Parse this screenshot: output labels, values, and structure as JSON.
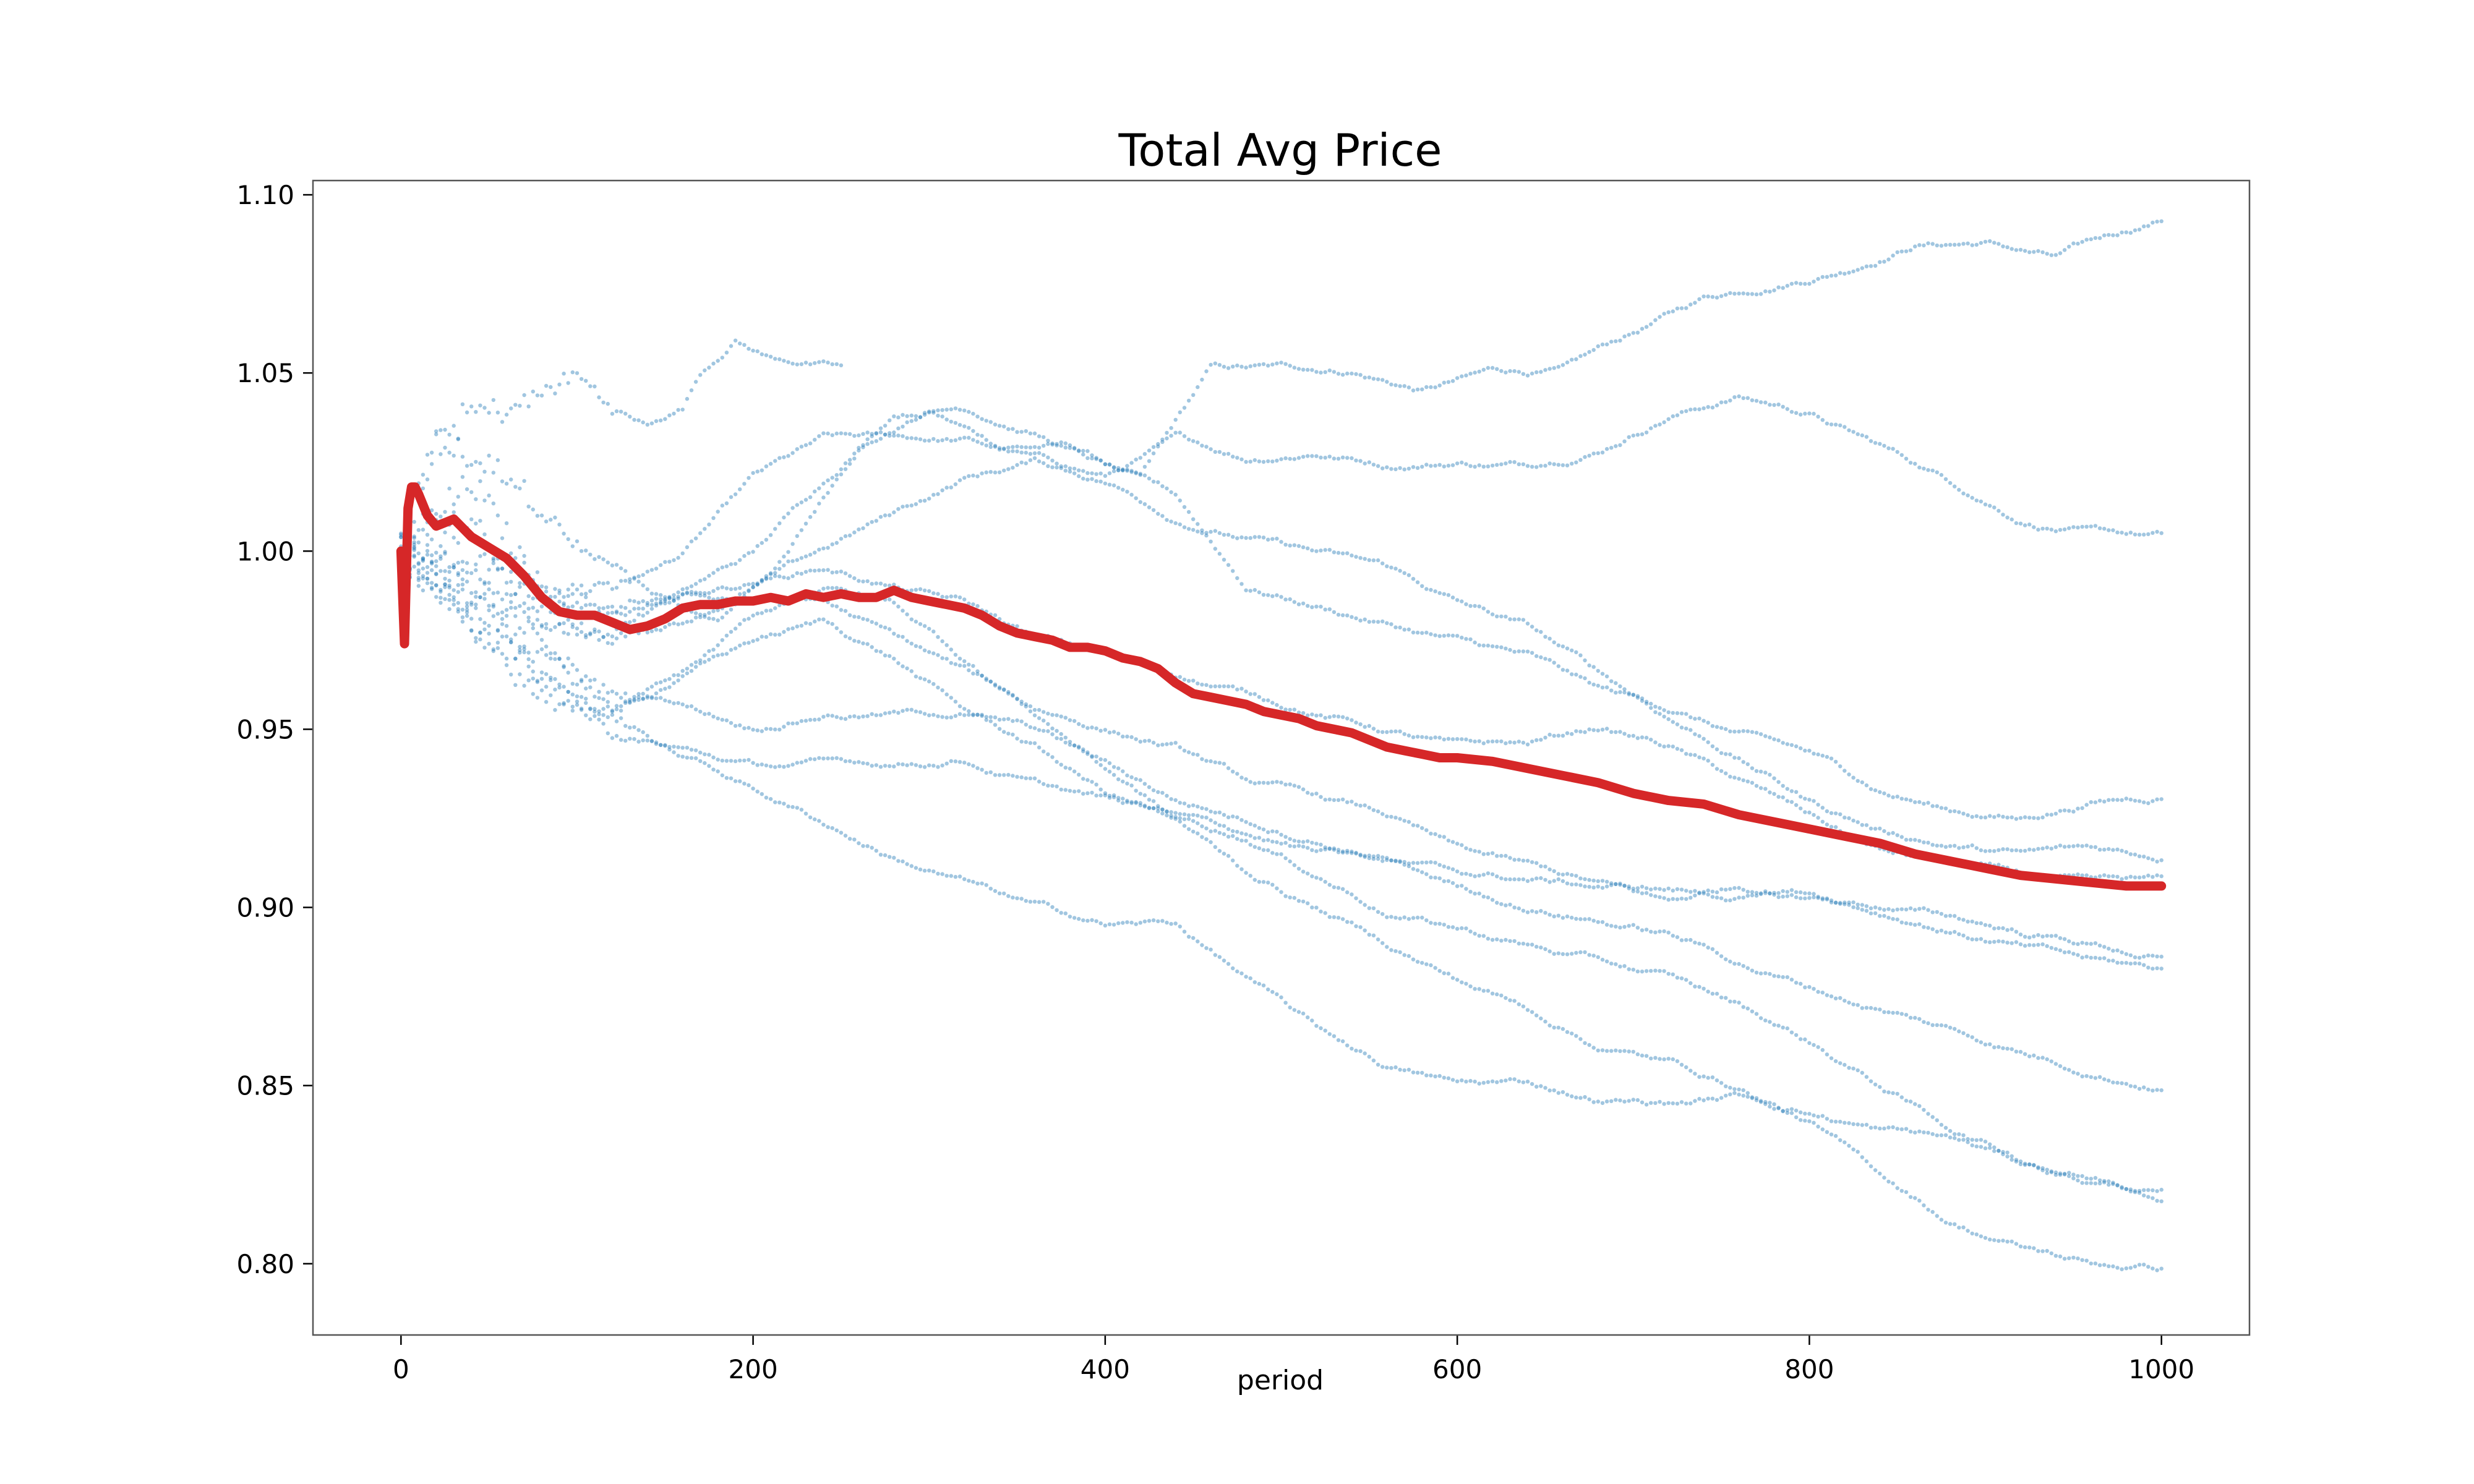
{
  "chart_data": {
    "type": "scatter",
    "title": "Total Avg Price",
    "xlabel": "period",
    "ylabel": "",
    "xlim": [
      -50,
      1050
    ],
    "ylim": [
      0.78,
      1.104
    ],
    "xticks": [
      0,
      200,
      400,
      600,
      800,
      1000
    ],
    "yticks": [
      0.8,
      0.85,
      0.9,
      0.95,
      1.0,
      1.05,
      1.1
    ],
    "xtick_labels": [
      "0",
      "200",
      "400",
      "600",
      "800",
      "1000"
    ],
    "ytick_labels": [
      "0.80",
      "0.85",
      "0.90",
      "0.95",
      "1.00",
      "1.05",
      "1.10"
    ],
    "grid": false,
    "legend": "none",
    "colors": {
      "runs": "#1f77b4",
      "average": "#d62728",
      "frame": "#555555"
    },
    "series": [
      {
        "kind": "scatter",
        "x": [
          0,
          20,
          60,
          100,
          140,
          180,
          220,
          260,
          300,
          340,
          380,
          420,
          460,
          500,
          540,
          580,
          620,
          660,
          700,
          740,
          780,
          820,
          860,
          900,
          940,
          1000
        ],
        "values": [
          1.0,
          1.03,
          1.02,
          1.0,
          0.99,
          0.98,
          1.0,
          1.03,
          1.04,
          1.03,
          1.03,
          1.02,
          1.05,
          1.05,
          1.05,
          1.045,
          1.05,
          1.05,
          1.06,
          1.07,
          1.075,
          1.08,
          1.088,
          1.088,
          1.083,
          1.093
        ]
      },
      {
        "kind": "scatter",
        "x": [
          0,
          40,
          80,
          120,
          160,
          200,
          240,
          280,
          320,
          360,
          400,
          440,
          480,
          520,
          560,
          600,
          640,
          680,
          720,
          760,
          800,
          840,
          880,
          920,
          960,
          1000
        ],
        "values": [
          1.0,
          1.01,
          0.99,
          0.99,
          1.0,
          1.02,
          1.03,
          1.03,
          1.03,
          1.025,
          1.02,
          1.03,
          1.025,
          1.028,
          1.025,
          1.026,
          1.025,
          1.03,
          1.04,
          1.045,
          1.04,
          1.03,
          1.02,
          1.01,
          1.006,
          1.004
        ]
      },
      {
        "kind": "scatter",
        "x": [
          0,
          20,
          40,
          60,
          80,
          100,
          120,
          140,
          160,
          170,
          190,
          210,
          230,
          250
        ],
        "values": [
          1.0,
          1.03,
          1.04,
          1.04,
          1.045,
          1.05,
          1.04,
          1.035,
          1.04,
          1.05,
          1.06,
          1.055,
          1.054,
          1.052
        ]
      },
      {
        "kind": "scatter",
        "x": [
          0,
          40,
          80,
          120,
          160,
          200,
          240,
          280,
          320,
          360,
          400,
          440,
          480,
          520,
          560,
          600,
          640,
          680,
          720,
          760,
          800,
          840,
          880,
          920,
          960,
          1000
        ],
        "values": [
          1.0,
          1.02,
          0.99,
          0.985,
          0.99,
          1.0,
          1.02,
          1.04,
          1.042,
          1.035,
          1.025,
          1.015,
          0.99,
          0.985,
          0.98,
          0.975,
          0.97,
          0.96,
          0.955,
          0.948,
          0.942,
          0.932,
          0.927,
          0.925,
          0.93,
          0.932
        ]
      },
      {
        "kind": "scatter",
        "x": [
          0,
          40,
          80,
          120,
          160,
          200,
          240,
          280,
          320,
          360,
          400,
          440,
          480,
          520,
          560,
          600,
          640,
          680,
          720,
          760,
          800,
          840,
          880,
          920,
          960,
          1000
        ],
        "values": [
          1.0,
          1.0,
          0.98,
          0.975,
          0.98,
          0.99,
          1.0,
          1.01,
          1.02,
          1.025,
          1.02,
          1.01,
          1.005,
          1.0,
          0.995,
          0.985,
          0.978,
          0.965,
          0.953,
          0.942,
          0.93,
          0.922,
          0.918,
          0.915,
          0.916,
          0.914
        ]
      },
      {
        "kind": "scatter",
        "x": [
          0,
          40,
          80,
          120,
          160,
          200,
          240,
          280,
          320,
          360,
          400,
          440,
          480,
          520,
          560,
          600,
          640,
          680,
          720,
          760,
          800,
          840,
          880,
          920,
          960,
          1000
        ],
        "values": [
          1.0,
          0.99,
          0.98,
          0.975,
          0.985,
          0.99,
          0.995,
          0.99,
          0.985,
          0.975,
          0.97,
          0.965,
          0.96,
          0.955,
          0.95,
          0.945,
          0.945,
          0.95,
          0.945,
          0.935,
          0.925,
          0.915,
          0.912,
          0.908,
          0.905,
          0.905
        ]
      },
      {
        "kind": "scatter",
        "x": [
          0,
          40,
          80,
          120,
          160,
          200,
          240,
          280,
          320,
          360,
          400,
          440,
          480,
          520,
          560,
          600,
          640,
          680,
          720,
          760,
          800,
          840,
          880,
          920,
          960,
          1000
        ],
        "values": [
          1.0,
          0.995,
          0.985,
          0.98,
          0.985,
          0.985,
          0.985,
          0.975,
          0.965,
          0.955,
          0.95,
          0.945,
          0.935,
          0.93,
          0.925,
          0.915,
          0.91,
          0.905,
          0.9,
          0.905,
          0.905,
          0.9,
          0.895,
          0.89,
          0.885,
          0.882
        ]
      },
      {
        "kind": "scatter",
        "x": [
          0,
          40,
          80,
          120,
          160,
          200,
          240,
          280,
          320,
          360,
          400,
          440,
          480,
          520,
          560,
          600,
          640,
          680,
          720,
          760,
          800,
          840,
          880,
          920,
          960,
          1000
        ],
        "values": [
          1.0,
          0.99,
          0.975,
          0.96,
          0.955,
          0.95,
          0.955,
          0.955,
          0.955,
          0.95,
          0.94,
          0.93,
          0.925,
          0.92,
          0.915,
          0.91,
          0.908,
          0.906,
          0.905,
          0.903,
          0.902,
          0.9,
          0.897,
          0.893,
          0.89,
          0.886
        ]
      },
      {
        "kind": "scatter",
        "x": [
          0,
          40,
          80,
          120,
          160,
          200,
          240,
          280,
          320,
          360,
          400,
          440,
          480,
          520,
          560,
          600,
          640,
          680,
          720,
          760,
          800,
          840,
          880,
          920,
          960,
          1000
        ],
        "values": [
          1.0,
          0.985,
          0.97,
          0.955,
          0.965,
          0.975,
          0.98,
          0.97,
          0.955,
          0.945,
          0.932,
          0.925,
          0.92,
          0.915,
          0.912,
          0.905,
          0.9,
          0.897,
          0.893,
          0.885,
          0.878,
          0.872,
          0.866,
          0.86,
          0.855,
          0.851
        ]
      },
      {
        "kind": "scatter",
        "x": [
          0,
          40,
          80,
          120,
          160,
          200,
          240,
          280,
          320,
          360,
          400,
          440,
          480,
          520,
          560,
          600,
          640,
          680,
          720,
          760,
          800,
          840,
          880,
          920,
          960,
          1000
        ],
        "values": [
          1.0,
          0.985,
          0.965,
          0.95,
          0.945,
          0.94,
          0.94,
          0.94,
          0.942,
          0.935,
          0.93,
          0.925,
          0.92,
          0.91,
          0.9,
          0.895,
          0.89,
          0.885,
          0.88,
          0.872,
          0.862,
          0.85,
          0.838,
          0.83,
          0.825,
          0.821
        ]
      },
      {
        "kind": "scatter",
        "x": [
          0,
          40,
          80,
          120,
          160,
          200,
          240,
          280,
          320,
          360,
          400,
          440,
          480,
          520,
          560,
          600,
          640,
          680,
          720,
          760,
          800,
          840,
          880,
          920,
          960,
          1000
        ],
        "values": [
          1.0,
          0.98,
          0.965,
          0.955,
          0.945,
          0.935,
          0.925,
          0.915,
          0.908,
          0.9,
          0.895,
          0.895,
          0.88,
          0.865,
          0.855,
          0.85,
          0.85,
          0.846,
          0.845,
          0.847,
          0.843,
          0.838,
          0.835,
          0.828,
          0.823,
          0.82
        ]
      },
      {
        "kind": "scatter",
        "x": [
          0,
          40,
          80,
          120,
          160,
          200,
          240,
          280,
          320,
          360,
          400,
          440,
          480,
          520,
          560,
          600,
          640,
          680,
          720,
          760,
          800,
          840,
          880,
          920,
          960,
          1000
        ],
        "values": [
          1.0,
          0.98,
          0.96,
          0.955,
          0.965,
          0.98,
          0.99,
          0.985,
          0.97,
          0.955,
          0.94,
          0.925,
          0.91,
          0.9,
          0.89,
          0.88,
          0.872,
          0.862,
          0.857,
          0.85,
          0.84,
          0.825,
          0.812,
          0.805,
          0.8,
          0.799
        ]
      },
      {
        "kind": "line",
        "x": [
          0,
          2,
          4,
          6,
          8,
          10,
          15,
          20,
          25,
          30,
          40,
          50,
          60,
          70,
          80,
          90,
          100,
          110,
          120,
          130,
          140,
          150,
          160,
          170,
          180,
          190,
          200,
          210,
          220,
          230,
          240,
          250,
          260,
          270,
          280,
          290,
          300,
          310,
          320,
          330,
          340,
          350,
          360,
          370,
          380,
          390,
          400,
          410,
          420,
          430,
          440,
          450,
          460,
          470,
          480,
          490,
          500,
          510,
          520,
          530,
          540,
          550,
          560,
          570,
          580,
          590,
          600,
          620,
          640,
          660,
          680,
          700,
          720,
          740,
          760,
          780,
          800,
          820,
          840,
          860,
          880,
          900,
          920,
          940,
          960,
          980,
          1000
        ],
        "values": [
          1.0,
          0.974,
          1.012,
          1.018,
          1.018,
          1.016,
          1.01,
          1.007,
          1.008,
          1.009,
          1.004,
          1.001,
          0.998,
          0.993,
          0.987,
          0.983,
          0.982,
          0.982,
          0.98,
          0.978,
          0.979,
          0.981,
          0.984,
          0.985,
          0.985,
          0.986,
          0.986,
          0.987,
          0.986,
          0.988,
          0.987,
          0.988,
          0.987,
          0.987,
          0.989,
          0.987,
          0.986,
          0.985,
          0.984,
          0.982,
          0.979,
          0.977,
          0.976,
          0.975,
          0.973,
          0.973,
          0.972,
          0.97,
          0.969,
          0.967,
          0.963,
          0.96,
          0.959,
          0.958,
          0.957,
          0.955,
          0.954,
          0.953,
          0.951,
          0.95,
          0.949,
          0.947,
          0.945,
          0.944,
          0.943,
          0.942,
          0.942,
          0.941,
          0.939,
          0.937,
          0.935,
          0.932,
          0.93,
          0.929,
          0.926,
          0.924,
          0.922,
          0.92,
          0.918,
          0.915,
          0.913,
          0.911,
          0.909,
          0.908,
          0.907,
          0.906,
          0.906
        ]
      }
    ]
  }
}
